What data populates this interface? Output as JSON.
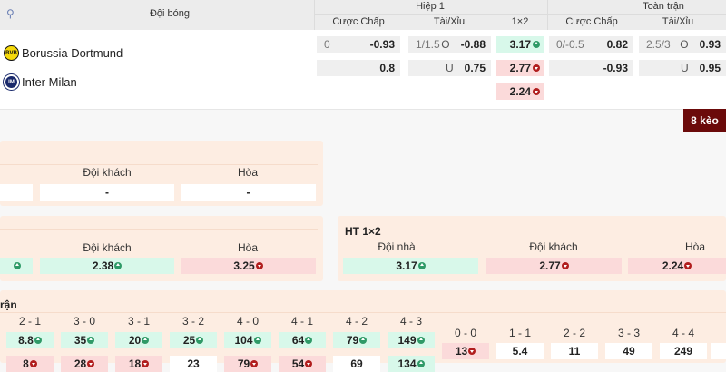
{
  "header": {
    "team_col": "Đội bóng",
    "half": "Hiệp 1",
    "full": "Toàn trận",
    "cols": [
      "Cược Chấp",
      "Tài/Xỉu",
      "1×2",
      "Cược Chấp",
      "Tài/Xỉu"
    ]
  },
  "teams": [
    {
      "name": "Borussia Dortmund",
      "logo": "BVB",
      "color": "#f5d90a"
    },
    {
      "name": "Inter Milan",
      "logo": "IM",
      "color": "#1a2a6c"
    }
  ],
  "odds_rows": [
    [
      {
        "l": "0",
        "v": "-0.93"
      },
      {
        "l": "1/1.5",
        "m": "O",
        "v": "-0.88"
      },
      {
        "v": "3.17",
        "t": "up"
      },
      {
        "l": "0/-0.5",
        "v": "0.82"
      },
      {
        "l": "2.5/3",
        "m": "O",
        "v": "0.93"
      }
    ],
    [
      {
        "v": "0.8"
      },
      {
        "m": "U",
        "v": "0.75"
      },
      {
        "v": "2.77",
        "t": "dn"
      },
      {
        "v": "-0.93"
      },
      {
        "m": "U",
        "v": "0.95"
      }
    ],
    [
      null,
      null,
      {
        "v": "2.24",
        "t": "dn"
      },
      null,
      null
    ]
  ],
  "more_button": "8 kèo",
  "panel1": {
    "labels": [
      "Đội khách",
      "Hòa"
    ],
    "values": [
      {
        "v": ""
      },
      {
        "v": "-"
      },
      {
        "v": "-"
      }
    ]
  },
  "panel2": {
    "labels": [
      "Đội khách",
      "Hòa"
    ],
    "values": [
      {
        "v": "",
        "t": "up"
      },
      {
        "v": "2.38",
        "t": "up"
      },
      {
        "v": "3.25",
        "t": "dn"
      }
    ]
  },
  "ht1x2": {
    "title": "HT 1×2",
    "labels": [
      "Đội nhà",
      "Đội khách",
      "Hòa"
    ],
    "values": [
      {
        "v": "3.17",
        "t": "up"
      },
      {
        "v": "2.77",
        "t": "dn"
      },
      {
        "v": "2.24",
        "t": "dn"
      }
    ]
  },
  "score_panel": {
    "title": "rận",
    "scores": [
      "2 - 1",
      "3 - 0",
      "3 - 1",
      "3 - 2",
      "4 - 0",
      "4 - 1",
      "4 - 2",
      "4 - 3"
    ],
    "home": [
      {
        "v": "8.8",
        "t": "up"
      },
      {
        "v": "35",
        "t": "up"
      },
      {
        "v": "20",
        "t": "up"
      },
      {
        "v": "25",
        "t": "up"
      },
      {
        "v": "104",
        "t": "up"
      },
      {
        "v": "64",
        "t": "up"
      },
      {
        "v": "79",
        "t": "up"
      },
      {
        "v": "149",
        "t": "up"
      }
    ],
    "away": [
      {
        "v": "8",
        "t": "dn"
      },
      {
        "v": "28",
        "t": "dn"
      },
      {
        "v": "18",
        "t": "dn"
      },
      {
        "v": "23"
      },
      {
        "v": "79",
        "t": "dn"
      },
      {
        "v": "54",
        "t": "dn"
      },
      {
        "v": "69"
      },
      {
        "v": "134",
        "t": "up"
      }
    ],
    "draws": [
      "0 - 0",
      "1 - 1",
      "2 - 2",
      "3 - 3",
      "4 - 4"
    ],
    "draw_odds": [
      {
        "v": "13",
        "t": "dn"
      },
      {
        "v": "5.4"
      },
      {
        "v": "11"
      },
      {
        "v": "49"
      },
      {
        "v": "249"
      },
      {
        "v": ""
      }
    ]
  },
  "colors": {
    "up": "#2f9a67",
    "down": "#b11e1e",
    "button": "#6b0a0a",
    "panel": "#fdede2"
  }
}
